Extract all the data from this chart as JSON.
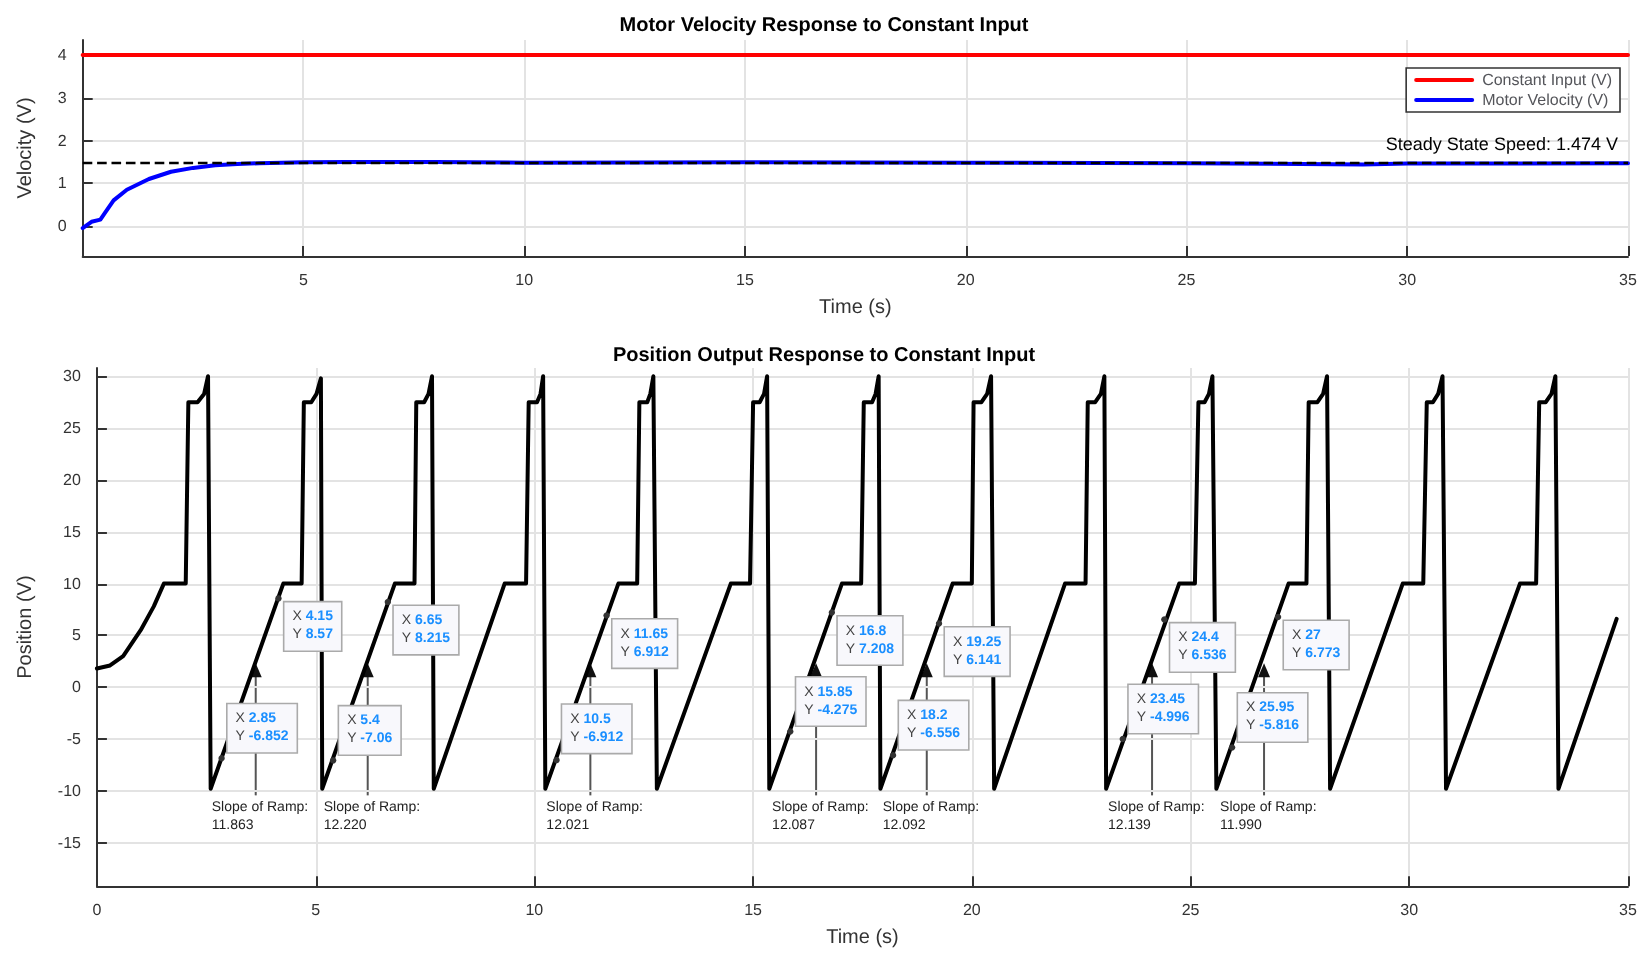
{
  "chart_data": [
    {
      "type": "line",
      "title": "Motor Velocity Response to Constant Input",
      "xlabel": "Time (s)",
      "ylabel": "Velocity (V)",
      "xlim": [
        0,
        35
      ],
      "ylim": [
        -0.7,
        4.35
      ],
      "xticks": [
        5,
        10,
        15,
        20,
        25,
        30,
        35
      ],
      "yticks": [
        0,
        1,
        2,
        3,
        4
      ],
      "grid": true,
      "legend": "top right",
      "series": [
        {
          "name": "Constant Input (V)",
          "color": "#ff0000",
          "x": [
            0,
            35
          ],
          "values": [
            4,
            4
          ]
        },
        {
          "name": "Motor Velocity (V)",
          "color": "#0000ff",
          "x": [
            0,
            0.2,
            0.4,
            0.5,
            0.7,
            1,
            1.5,
            2,
            2.5,
            3,
            3.5,
            4,
            5,
            6,
            8,
            10,
            15,
            20,
            25,
            29,
            30,
            35
          ],
          "values": [
            -0.05,
            0.1,
            0.15,
            0.3,
            0.6,
            0.85,
            1.1,
            1.27,
            1.36,
            1.42,
            1.45,
            1.47,
            1.49,
            1.5,
            1.5,
            1.48,
            1.49,
            1.48,
            1.47,
            1.44,
            1.46,
            1.47
          ]
        }
      ],
      "ref_lines": [
        {
          "axis": "y",
          "value": 1.474,
          "label": "Steady State Speed: 1.474 V",
          "color": "#000000",
          "line_style": "dashed"
        }
      ]
    },
    {
      "type": "line",
      "title": "Position Output Response to Constant Input",
      "xlabel": "Time (s)",
      "ylabel": "Position (V)",
      "xlim": [
        0,
        35
      ],
      "ylim": [
        -19.2,
        30.8
      ],
      "xticks": [
        0,
        5,
        10,
        15,
        20,
        25,
        30,
        35
      ],
      "yticks": [
        -15,
        -10,
        -5,
        0,
        5,
        10,
        15,
        20,
        25,
        30
      ],
      "grid": true,
      "series": [
        {
          "color": "#000000",
          "x": [
            0,
            0.3,
            0.6,
            1.0,
            1.3,
            1.53,
            2.03,
            2.09,
            2.3,
            2.45,
            2.54,
            2.6,
            4.26,
            4.68,
            4.73,
            4.9,
            5.02,
            5.12,
            5.15,
            6.81,
            7.26,
            7.3,
            7.48,
            7.58,
            7.66,
            7.7,
            9.32,
            9.81,
            9.87,
            10.06,
            10.14,
            10.2,
            10.25,
            11.92,
            12.35,
            12.4,
            12.58,
            12.65,
            12.72,
            12.8,
            14.49,
            14.93,
            15.0,
            15.15,
            15.25,
            15.32,
            15.37,
            17.03,
            17.47,
            17.53,
            17.72,
            17.8,
            17.87,
            17.91,
            19.56,
            20.0,
            20.04,
            20.22,
            20.35,
            20.44,
            20.51,
            22.13,
            22.6,
            22.65,
            22.82,
            22.95,
            23.03,
            23.07,
            24.74,
            25.1,
            25.18,
            25.32,
            25.42,
            25.5,
            25.59,
            27.24,
            27.65,
            27.7,
            27.9,
            28.03,
            28.12,
            28.19,
            29.85,
            30.32,
            30.4,
            30.54,
            30.66,
            30.76,
            30.84,
            32.53,
            32.9,
            32.97,
            33.12,
            33.25,
            33.34,
            33.41,
            34.74
          ],
          "values": [
            1.8,
            2.1,
            3,
            5.5,
            7.8,
            10,
            10,
            27.5,
            27.5,
            28.3,
            30,
            -9.8,
            10,
            10,
            27.5,
            27.5,
            28.3,
            29.8,
            -9.8,
            10,
            10,
            27.5,
            27.5,
            28.3,
            30,
            -9.8,
            10,
            10,
            27.5,
            27.5,
            28.3,
            30,
            -9.8,
            10,
            10,
            27.5,
            27.5,
            28.3,
            30,
            -9.8,
            10,
            10,
            27.5,
            27.5,
            28.3,
            30,
            -9.8,
            10,
            10,
            27.5,
            27.5,
            28.3,
            30,
            -9.8,
            10,
            10,
            27.5,
            27.5,
            28.3,
            30,
            -9.8,
            10,
            10,
            27.5,
            27.5,
            28.3,
            30,
            -9.8,
            10,
            10,
            27.5,
            27.5,
            28.3,
            30,
            -9.8,
            10,
            10,
            27.5,
            27.5,
            28.3,
            30,
            -9.8,
            10,
            10,
            27.5,
            27.5,
            28.3,
            30,
            -9.8,
            10,
            10,
            27.5,
            27.5,
            28.3,
            30,
            -9.8,
            6.6
          ]
        }
      ],
      "annotations": [
        {
          "text": "X 2.85\nY -6.852",
          "x": 2.85,
          "y": -6.852
        },
        {
          "text": "X 4.15\nY 8.57",
          "x": 4.15,
          "y": 8.57
        },
        {
          "text": "Slope of Ramp:\n11.863",
          "x": 3.63,
          "y": 2.3
        },
        {
          "text": "X 5.4\nY -7.06",
          "x": 5.4,
          "y": -7.06
        },
        {
          "text": "X 6.65\nY 8.215",
          "x": 6.65,
          "y": 8.215
        },
        {
          "text": "Slope of Ramp:\n12.220",
          "x": 6.19,
          "y": 2.3
        },
        {
          "text": "X 10.5\nY -6.912",
          "x": 10.5,
          "y": -6.912
        },
        {
          "text": "X 11.65\nY 6.912",
          "x": 11.65,
          "y": 6.912
        },
        {
          "text": "Slope of Ramp:\n12.021",
          "x": 11.28,
          "y": 2.3
        },
        {
          "text": "X 15.85\nY -4.275",
          "x": 15.85,
          "y": -4.275
        },
        {
          "text": "X 16.8\nY 7.208",
          "x": 16.8,
          "y": 7.208
        },
        {
          "text": "Slope of Ramp:\n12.087",
          "x": 16.44,
          "y": 2.3
        },
        {
          "text": "X 18.2\nY -6.556",
          "x": 18.2,
          "y": -6.556
        },
        {
          "text": "X 19.25\nY 6.141",
          "x": 19.25,
          "y": 6.141
        },
        {
          "text": "Slope of Ramp:\n12.092",
          "x": 18.97,
          "y": 2.3
        },
        {
          "text": "X 23.45\nY -4.996",
          "x": 23.45,
          "y": -4.996
        },
        {
          "text": "X 24.4\nY 6.536",
          "x": 24.4,
          "y": 6.536
        },
        {
          "text": "Slope of Ramp:\n12.139",
          "x": 24.12,
          "y": 2.3
        },
        {
          "text": "X 25.95\nY -5.816",
          "x": 25.95,
          "y": -5.816
        },
        {
          "text": "X 27\nY 6.773",
          "x": 27,
          "y": 6.773
        },
        {
          "text": "Slope of Ramp:\n11.990",
          "x": 26.68,
          "y": 2.3
        }
      ]
    }
  ]
}
